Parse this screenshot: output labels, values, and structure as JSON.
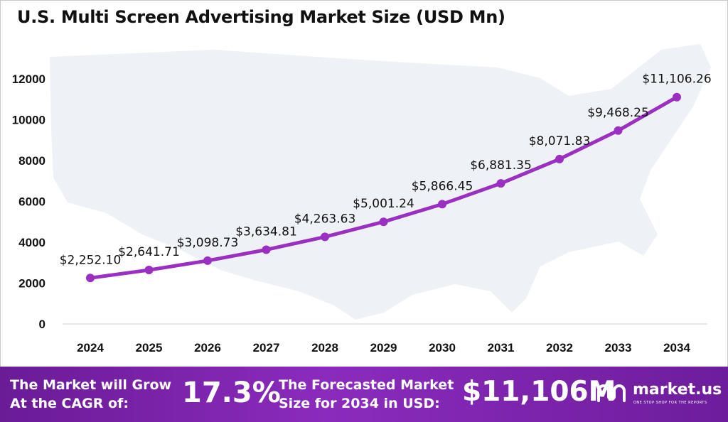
{
  "chart_data": {
    "type": "line",
    "title": "U.S. Multi Screen Advertising Market Size (USD Mn)",
    "categories": [
      "2024",
      "2025",
      "2026",
      "2027",
      "2028",
      "2029",
      "2030",
      "2031",
      "2032",
      "2033",
      "2034"
    ],
    "values": [
      2252.1,
      2641.71,
      3098.73,
      3634.81,
      4263.63,
      5001.24,
      5866.45,
      6881.35,
      8071.83,
      9468.25,
      11106.26
    ],
    "data_labels": [
      "$2,252.10",
      "$2,641.71",
      "$3,098.73",
      "$3,634.81",
      "$4,263.63",
      "$5,001.24",
      "$5,866.45",
      "$6,881.35",
      "$8,071.83",
      "$9,468.25",
      "$11,106.26"
    ],
    "yticks": [
      0,
      2000,
      4000,
      6000,
      8000,
      10000,
      12000
    ],
    "ytick_labels": [
      "0",
      "2000",
      "4000",
      "6000",
      "8000",
      "10000",
      "12000"
    ],
    "ylim": [
      0,
      12000
    ],
    "xlabel": "",
    "ylabel": "",
    "grid": false,
    "line_color": "#9b2fc2"
  },
  "banner": {
    "cagr_text": "The Market will Grow\nAt the CAGR of:",
    "cagr_value": "17.3%",
    "forecast_text": "The Forecasted Market\nSize for 2034 in USD:",
    "forecast_value": "$11,106M",
    "brand_name": "market.us",
    "brand_tagline": "ONE STOP SHOP FOR THE REPORTS"
  }
}
